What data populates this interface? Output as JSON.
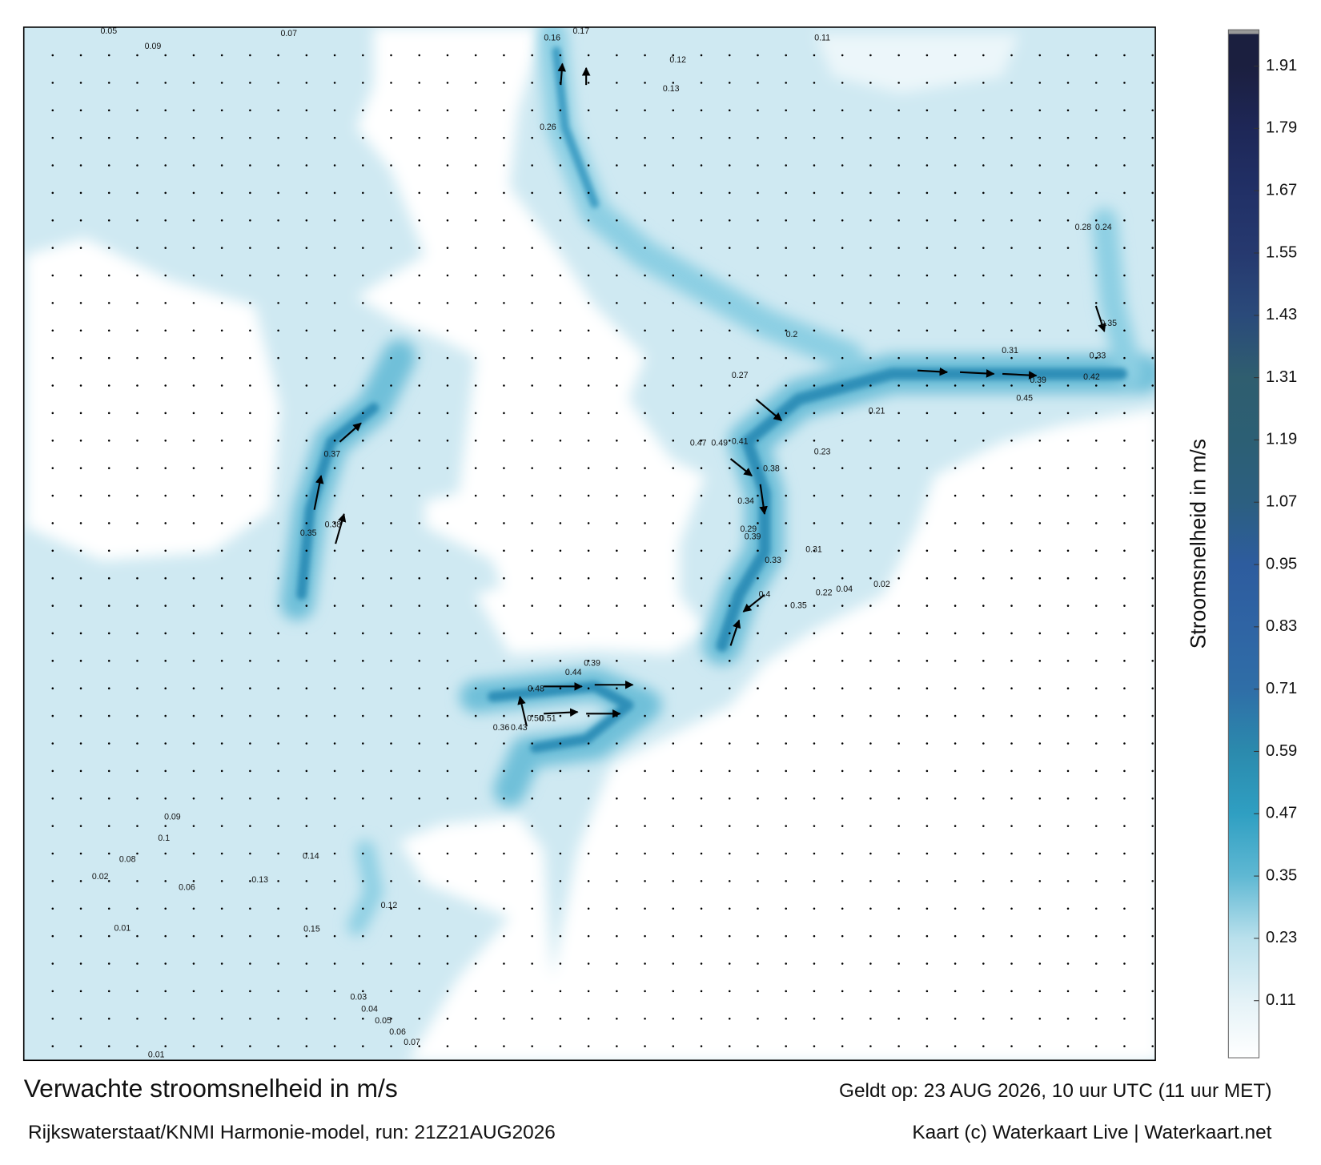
{
  "title": "Verwachte stroomsnelheid in m/s",
  "subtitle": "Rijkswaterstaat/KNMI Harmonie-model, run: 21Z21AUG2026",
  "valid_time": "Geldt op: 23 AUG 2026, 10 uur UTC (11 uur MET)",
  "credit": "Kaart (c) Waterkaart Live | Waterkaart.net",
  "colorbar": {
    "label": "Stroomsnelheid in m/s",
    "lim": [
      0,
      1.98
    ],
    "ticks": [
      0.11,
      0.23,
      0.35,
      0.47,
      0.59,
      0.71,
      0.83,
      0.95,
      1.07,
      1.19,
      1.31,
      1.43,
      1.55,
      1.67,
      1.79,
      1.91
    ],
    "colors": [
      "#e4f2f7",
      "#b9e0ec",
      "#5fb8d3",
      "#2f9fc2",
      "#2b8aad",
      "#2f6ea7",
      "#2f64a4",
      "#2d5c9e",
      "#2c5f80",
      "#2c5f74",
      "#2f5e6f",
      "#2a4a7a",
      "#26396f",
      "#213066",
      "#1e2757",
      "#1b1f3f"
    ]
  },
  "map_labels": [
    "0.49",
    "0.47",
    "0.41",
    "0.39",
    "0.44",
    "0.48",
    "0.51",
    "0.50",
    "0.43",
    "0.36",
    "0.39",
    "0.45",
    "0.42",
    "0.39",
    "0.37",
    "0.38",
    "0.35",
    "0.34",
    "0.38",
    "0.35",
    "0.33",
    "0.31",
    "0.28",
    "0.26",
    "0.24",
    "0.16",
    "0.17",
    "0.13",
    "0.12",
    "0.11",
    "0.09",
    "0.07",
    "0.05",
    "0.15",
    "0.14",
    "0.13",
    "0.12",
    "0.1",
    "0.09",
    "0.08",
    "0.06",
    "0.01",
    "0.02",
    "0.03",
    "0.04",
    "0.05",
    "0.06",
    "0.07",
    "0.01",
    "0.2",
    "0.21",
    "0.23",
    "0.27",
    "0.29",
    "0.31",
    "0.33",
    "0.4",
    "0.35",
    "0.22",
    "0.04",
    "0.02"
  ]
}
